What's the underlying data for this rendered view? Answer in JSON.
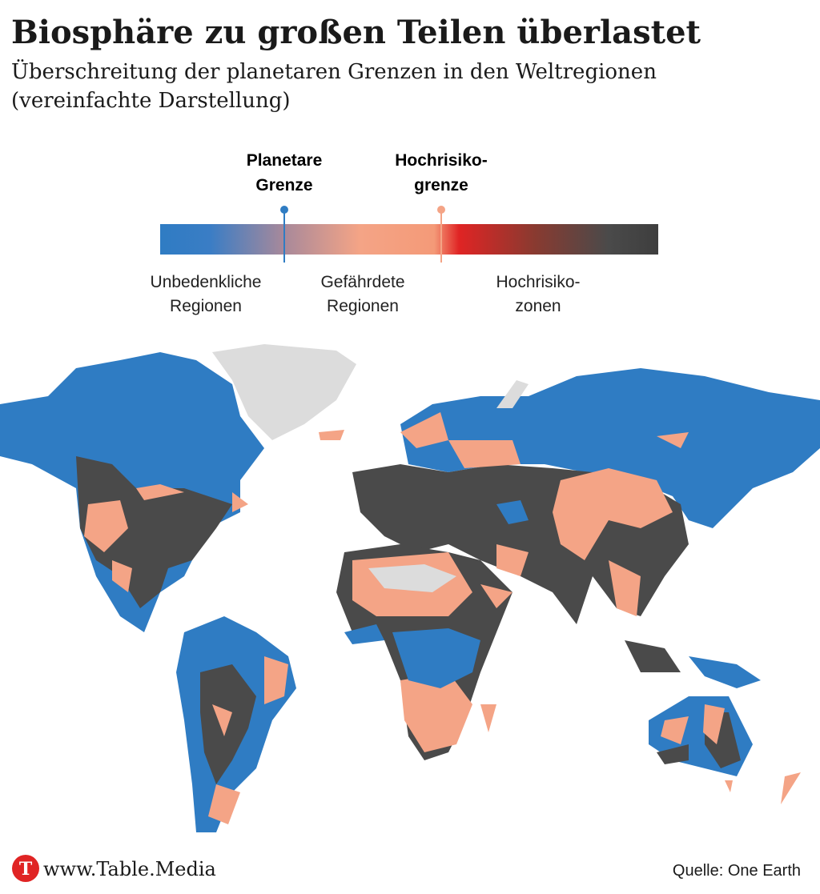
{
  "header": {
    "title": "Biosphäre zu großen Teilen überlastet",
    "subtitle_lines": [
      "Überschreitung der planetaren Grenzen in den Weltregionen",
      "(vereinfachte Darstellung)"
    ]
  },
  "legend": {
    "markers": [
      {
        "lines": [
          "Planetare",
          "Grenze"
        ]
      },
      {
        "lines": [
          "Hochrisiko-",
          "grenze"
        ]
      }
    ],
    "zones": [
      {
        "lines": [
          "Unbedenkliche",
          "Regionen"
        ]
      },
      {
        "lines": [
          "Gefährdete",
          "Regionen"
        ]
      },
      {
        "lines": [
          "Hochrisiko-",
          "zonen"
        ]
      }
    ]
  },
  "footer": {
    "logo": "T",
    "site": "www.Table.Media",
    "source": "Quelle: One Earth"
  }
}
